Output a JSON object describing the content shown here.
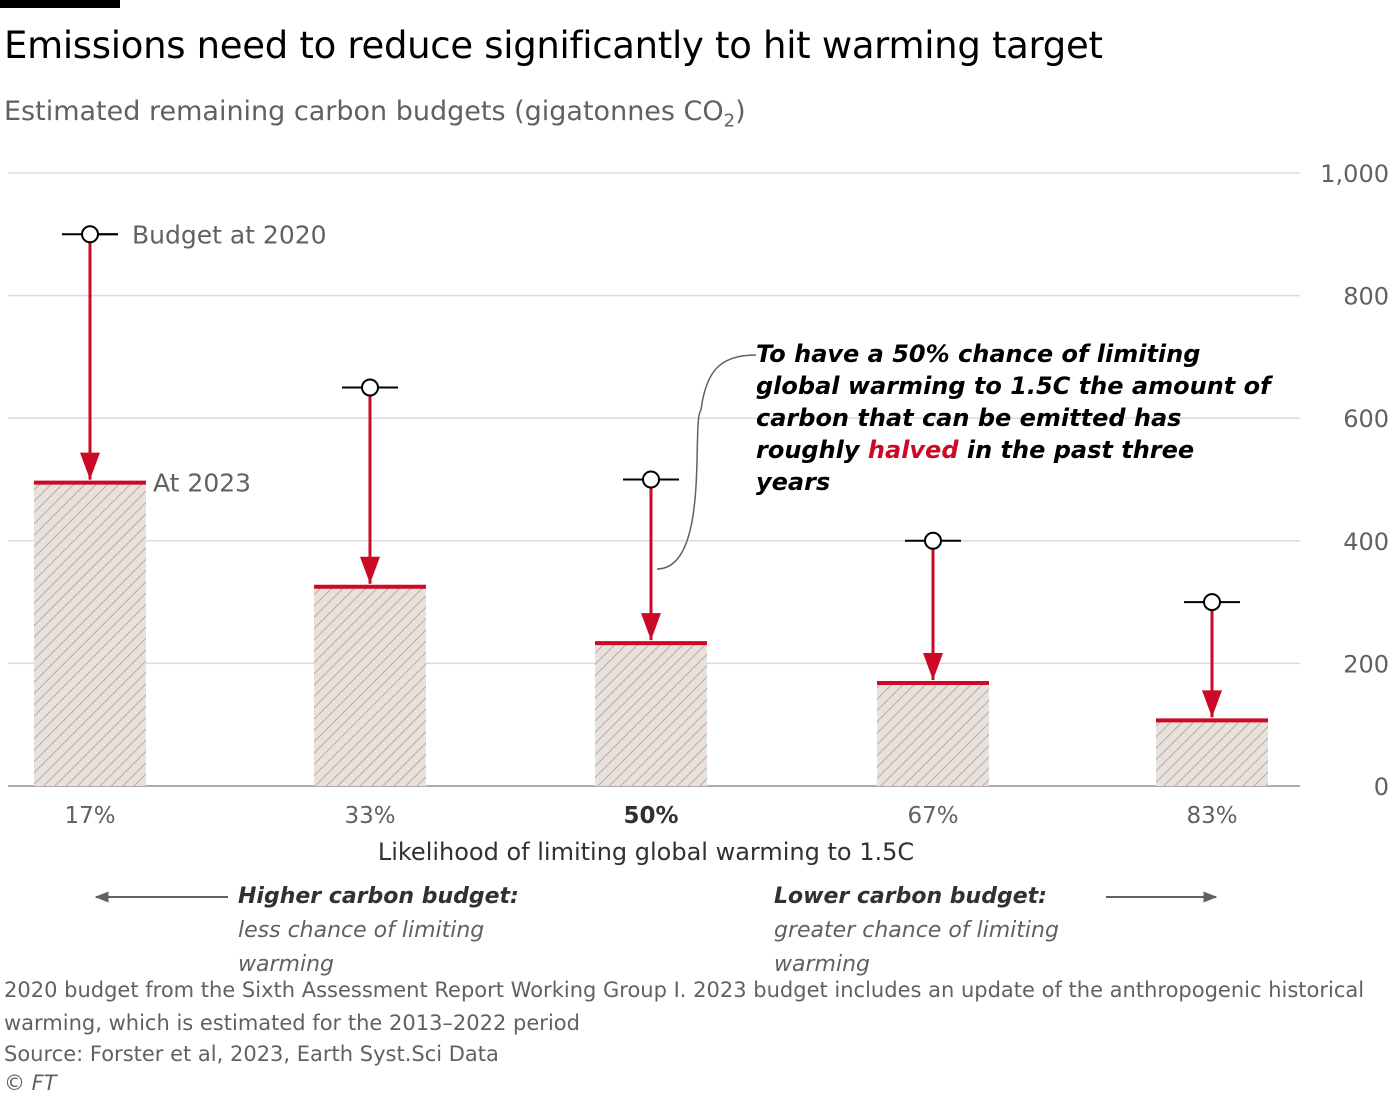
{
  "title": "Emissions need to reduce significantly to hit warming target",
  "subtitle_main": "Estimated remaining carbon budgets (gigatonnes CO",
  "subtitle_sub": "2",
  "subtitle_end": ")",
  "colors": {
    "accent": "#cc0a27",
    "bar_fill": "#e9e2dc",
    "bar_hatch": "#b4aba6",
    "grid": "#dedad6"
  },
  "chart_data": {
    "type": "bar",
    "categories": [
      "17%",
      "33%",
      "50%",
      "67%",
      "83%"
    ],
    "highlight_category": "50%",
    "series": [
      {
        "name": "Budget at 2020",
        "values": [
          900,
          650,
          500,
          400,
          300
        ]
      },
      {
        "name": "At 2023",
        "values": [
          495,
          325,
          233,
          168,
          107
        ]
      }
    ],
    "xlabel": "Likelihood of limiting global warming to 1.5C",
    "ylabel": "",
    "ylim": [
      0,
      1000
    ],
    "yticks": [
      0,
      200,
      400,
      600,
      800,
      1000
    ],
    "ytick_labels": [
      "0",
      "200",
      "400",
      "600",
      "800",
      "1,000"
    ],
    "grid": true,
    "y_axis_position": "right",
    "legend": {
      "budget_2020": "Budget at 2020",
      "at_2023": "At 2023"
    }
  },
  "annotation": {
    "part1": "To have a 50% chance of limiting global warming to 1.5C the amount of carbon that can be emitted has roughly ",
    "highlight": "halved",
    "part2": " in the past three years"
  },
  "hints": {
    "left_bold": "Higher carbon budget:",
    "left_rest": " less chance of limiting warming",
    "right_bold": "Lower carbon budget:",
    "right_rest": " greater chance of limiting warming"
  },
  "footnote": "2020 budget from the Sixth Assessment Report Working Group I. 2023 budget includes an update of the anthropogenic historical warming, which is estimated for the 2013–2022 period",
  "source": "Source: Forster et al, 2023, Earth Syst.Sci Data",
  "copyright": "© FT"
}
